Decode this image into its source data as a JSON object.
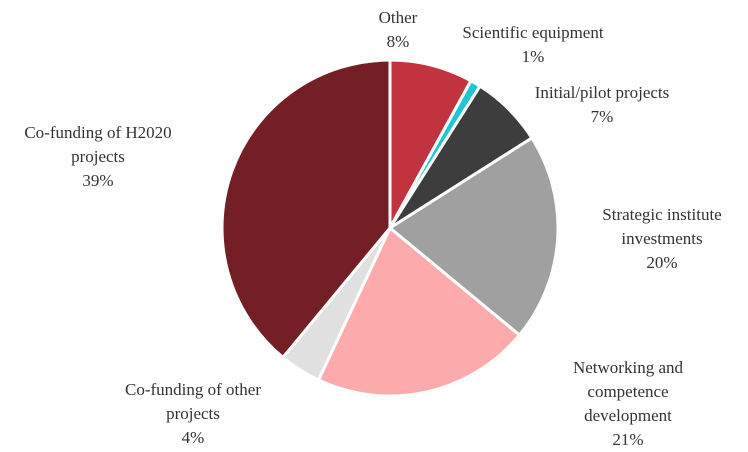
{
  "chart_data": {
    "type": "pie",
    "categories": [
      "Other",
      "Scientific equipment",
      "Initial/pilot projects",
      "Strategic institute investments",
      "Networking and competence development",
      "Co-funding of other projects",
      "Co-funding of H2020 projects"
    ],
    "values": [
      8,
      1,
      7,
      20,
      21,
      4,
      39
    ],
    "value_labels": [
      "8%",
      "1%",
      "7%",
      "20%",
      "21%",
      "4%",
      "39%"
    ],
    "colors": [
      "#c1343f",
      "#1fc6cf",
      "#3d3d3d",
      "#a0a0a0",
      "#fcaaac",
      "#e0e0e0",
      "#741e25"
    ]
  }
}
